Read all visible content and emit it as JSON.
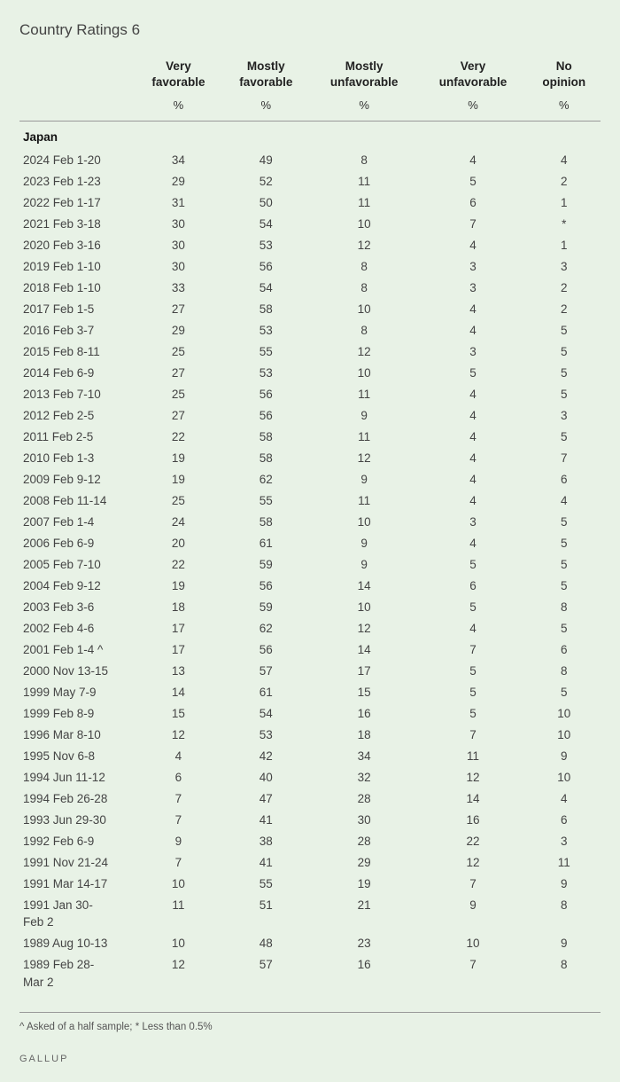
{
  "title": "Country Ratings 6",
  "columns": [
    "Very favorable",
    "Mostly favorable",
    "Mostly unfavorable",
    "Very unfavorable",
    "No opinion"
  ],
  "unit": "%",
  "country": "Japan",
  "rows": [
    {
      "date": "2024 Feb 1-20",
      "v": [
        "34",
        "49",
        "8",
        "4",
        "4"
      ]
    },
    {
      "date": "2023 Feb 1-23",
      "v": [
        "29",
        "52",
        "11",
        "5",
        "2"
      ]
    },
    {
      "date": "2022 Feb 1-17",
      "v": [
        "31",
        "50",
        "11",
        "6",
        "1"
      ]
    },
    {
      "date": "2021 Feb 3-18",
      "v": [
        "30",
        "54",
        "10",
        "7",
        "*"
      ]
    },
    {
      "date": "2020 Feb 3-16",
      "v": [
        "30",
        "53",
        "12",
        "4",
        "1"
      ]
    },
    {
      "date": "2019 Feb 1-10",
      "v": [
        "30",
        "56",
        "8",
        "3",
        "3"
      ]
    },
    {
      "date": "2018 Feb 1-10",
      "v": [
        "33",
        "54",
        "8",
        "3",
        "2"
      ]
    },
    {
      "date": "2017 Feb 1-5",
      "v": [
        "27",
        "58",
        "10",
        "4",
        "2"
      ]
    },
    {
      "date": "2016 Feb 3-7",
      "v": [
        "29",
        "53",
        "8",
        "4",
        "5"
      ]
    },
    {
      "date": "2015 Feb 8-11",
      "v": [
        "25",
        "55",
        "12",
        "3",
        "5"
      ]
    },
    {
      "date": "2014 Feb 6-9",
      "v": [
        "27",
        "53",
        "10",
        "5",
        "5"
      ]
    },
    {
      "date": "2013 Feb 7-10",
      "v": [
        "25",
        "56",
        "11",
        "4",
        "5"
      ]
    },
    {
      "date": "2012 Feb 2-5",
      "v": [
        "27",
        "56",
        "9",
        "4",
        "3"
      ]
    },
    {
      "date": "2011 Feb 2-5",
      "v": [
        "22",
        "58",
        "11",
        "4",
        "5"
      ]
    },
    {
      "date": "2010 Feb 1-3",
      "v": [
        "19",
        "58",
        "12",
        "4",
        "7"
      ]
    },
    {
      "date": "2009 Feb 9-12",
      "v": [
        "19",
        "62",
        "9",
        "4",
        "6"
      ]
    },
    {
      "date": "2008 Feb 11-14",
      "v": [
        "25",
        "55",
        "11",
        "4",
        "4"
      ]
    },
    {
      "date": "2007 Feb 1-4",
      "v": [
        "24",
        "58",
        "10",
        "3",
        "5"
      ]
    },
    {
      "date": "2006 Feb 6-9",
      "v": [
        "20",
        "61",
        "9",
        "4",
        "5"
      ]
    },
    {
      "date": "2005 Feb 7-10",
      "v": [
        "22",
        "59",
        "9",
        "5",
        "5"
      ]
    },
    {
      "date": "2004 Feb 9-12",
      "v": [
        "19",
        "56",
        "14",
        "6",
        "5"
      ]
    },
    {
      "date": "2003 Feb 3-6",
      "v": [
        "18",
        "59",
        "10",
        "5",
        "8"
      ]
    },
    {
      "date": "2002 Feb 4-6",
      "v": [
        "17",
        "62",
        "12",
        "4",
        "5"
      ]
    },
    {
      "date": "2001 Feb 1-4 ^",
      "v": [
        "17",
        "56",
        "14",
        "7",
        "6"
      ]
    },
    {
      "date": "2000 Nov 13-15",
      "v": [
        "13",
        "57",
        "17",
        "5",
        "8"
      ]
    },
    {
      "date": "1999 May 7-9",
      "v": [
        "14",
        "61",
        "15",
        "5",
        "5"
      ]
    },
    {
      "date": "1999 Feb 8-9",
      "v": [
        "15",
        "54",
        "16",
        "5",
        "10"
      ]
    },
    {
      "date": "1996 Mar 8-10",
      "v": [
        "12",
        "53",
        "18",
        "7",
        "10"
      ]
    },
    {
      "date": "1995 Nov 6-8",
      "v": [
        "4",
        "42",
        "34",
        "11",
        "9"
      ]
    },
    {
      "date": "1994 Jun 11-12",
      "v": [
        "6",
        "40",
        "32",
        "12",
        "10"
      ]
    },
    {
      "date": "1994 Feb 26-28",
      "v": [
        "7",
        "47",
        "28",
        "14",
        "4"
      ]
    },
    {
      "date": "1993 Jun 29-30",
      "v": [
        "7",
        "41",
        "30",
        "16",
        "6"
      ]
    },
    {
      "date": "1992 Feb 6-9",
      "v": [
        "9",
        "38",
        "28",
        "22",
        "3"
      ]
    },
    {
      "date": "1991 Nov 21-24",
      "v": [
        "7",
        "41",
        "29",
        "12",
        "11"
      ]
    },
    {
      "date": "1991 Mar 14-17",
      "v": [
        "10",
        "55",
        "19",
        "7",
        "9"
      ]
    },
    {
      "date": "1991 Jan 30-",
      "v": [
        "11",
        "51",
        "21",
        "9",
        "8"
      ],
      "wrap": "Feb 2"
    },
    {
      "date": "1989 Aug 10-13",
      "v": [
        "10",
        "48",
        "23",
        "10",
        "9"
      ]
    },
    {
      "date": "1989 Feb 28-",
      "v": [
        "12",
        "57",
        "16",
        "7",
        "8"
      ],
      "wrap": "Mar 2"
    }
  ],
  "footnote": "^ Asked of a half sample; * Less than 0.5%",
  "brand": "GALLUP",
  "colors": {
    "background": "#e8f2e6",
    "text": "#333",
    "header": "#222",
    "rule": "#999"
  }
}
